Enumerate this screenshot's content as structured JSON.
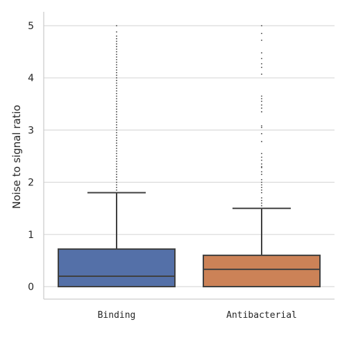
{
  "chart_data": {
    "type": "box",
    "ylabel": "Noise to signal ratio",
    "xlabel": "",
    "ylim": [
      -0.25,
      5.25
    ],
    "yticks": [
      0,
      1,
      2,
      3,
      4,
      5
    ],
    "grid": "horizontal",
    "categories": [
      "Binding",
      "Antibacterial"
    ],
    "boxes": [
      {
        "category": "Binding",
        "color": "#5470a8",
        "q1": 0.0,
        "median": 0.2,
        "q3": 0.72,
        "whisker_low": 0.0,
        "whisker_high": 1.8,
        "outliers": [
          1.85,
          1.9,
          1.95,
          2.0,
          2.05,
          2.1,
          2.15,
          2.2,
          2.25,
          2.3,
          2.35,
          2.4,
          2.45,
          2.5,
          2.55,
          2.6,
          2.65,
          2.7,
          2.75,
          2.8,
          2.85,
          2.9,
          2.95,
          3.0,
          3.05,
          3.1,
          3.15,
          3.2,
          3.25,
          3.3,
          3.35,
          3.4,
          3.45,
          3.5,
          3.55,
          3.6,
          3.65,
          3.7,
          3.75,
          3.8,
          3.85,
          3.9,
          3.95,
          4.0,
          4.05,
          4.1,
          4.15,
          4.2,
          4.25,
          4.3,
          4.35,
          4.4,
          4.45,
          4.5,
          4.55,
          4.6,
          4.65,
          4.7,
          4.75,
          4.8,
          4.88,
          5.0
        ]
      },
      {
        "category": "Antibacterial",
        "color": "#cc8257",
        "q1": 0.0,
        "median": 0.33,
        "q3": 0.6,
        "whisker_low": 0.0,
        "whisker_high": 1.5,
        "outliers": [
          1.55,
          1.6,
          1.65,
          1.7,
          1.8,
          1.85,
          1.9,
          1.95,
          2.0,
          2.05,
          2.15,
          2.2,
          2.28,
          2.3,
          2.35,
          2.42,
          2.48,
          2.55,
          2.78,
          2.93,
          3.05,
          3.08,
          3.35,
          3.42,
          3.48,
          3.55,
          3.6,
          3.65,
          4.07,
          4.2,
          4.27,
          4.37,
          4.48,
          4.72,
          4.85,
          5.0
        ]
      }
    ]
  }
}
